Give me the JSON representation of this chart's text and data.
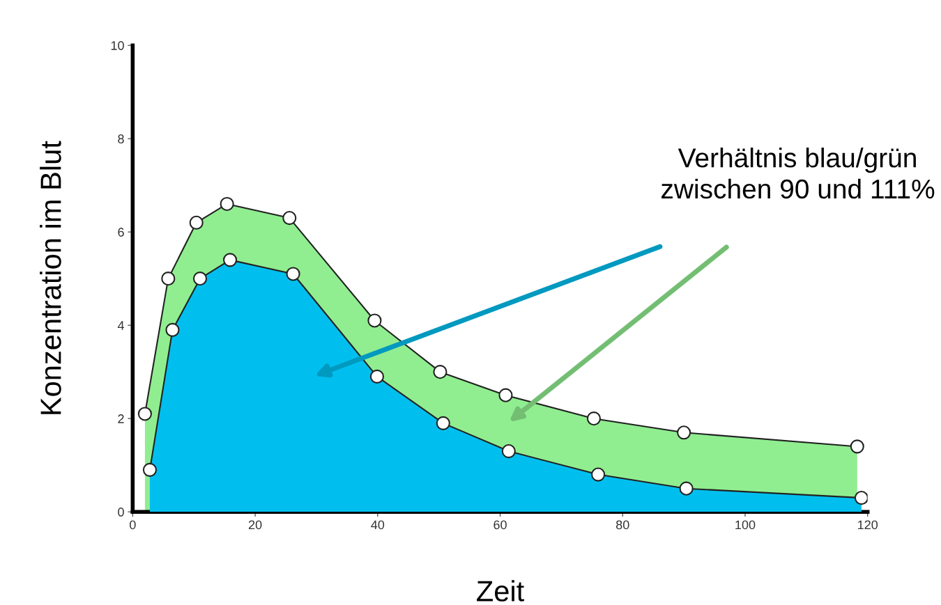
{
  "chart_data": {
    "type": "area",
    "xlabel": "Zeit",
    "ylabel": "Konzentration im Blut",
    "xlim": [
      0,
      120
    ],
    "xticks": [
      0,
      20,
      40,
      60,
      80,
      100,
      120
    ],
    "ylim": [
      0,
      10
    ],
    "yticks": [
      0,
      2,
      4,
      6,
      8,
      10
    ],
    "grid": false,
    "legend": false,
    "marker": "circle",
    "line_style": "solid",
    "series": [
      {
        "color": "#90ee90",
        "x": [
          2,
          5.8,
          10.4,
          15.4,
          25.6,
          39.5,
          50.2,
          60.9,
          75.3,
          90,
          118.3
        ],
        "values": [
          2.1,
          5.0,
          6.2,
          6.6,
          6.3,
          4.1,
          3.0,
          2.5,
          2.0,
          1.7,
          1.4
        ]
      },
      {
        "color": "#00bfef",
        "x": [
          2.8,
          6.5,
          11,
          15.9,
          26.2,
          39.9,
          50.7,
          61.4,
          76,
          90.4,
          119
        ],
        "values": [
          0.9,
          3.9,
          5.0,
          5.4,
          5.1,
          2.9,
          1.9,
          1.3,
          0.8,
          0.5,
          0.3
        ]
      }
    ],
    "annotations": [
      "Verhältnis blau/grün\nzwischen 90 und 111%"
    ]
  }
}
